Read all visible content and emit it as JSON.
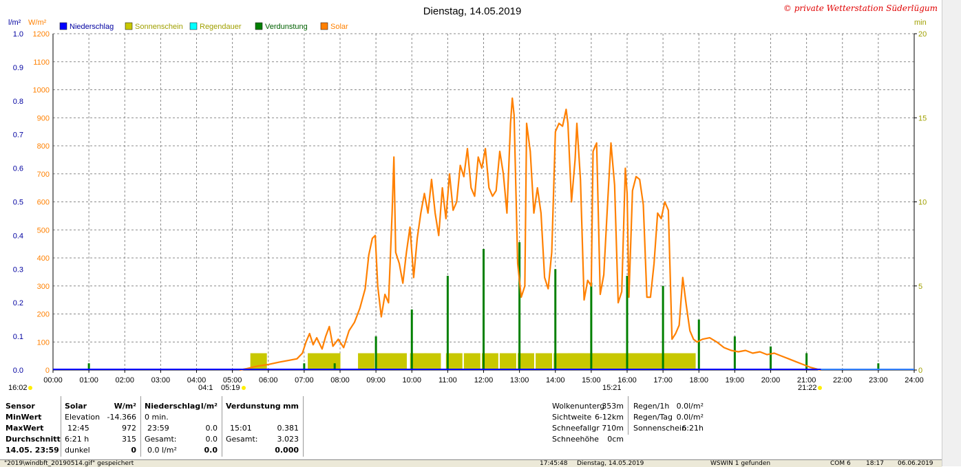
{
  "chart_data": {
    "type": "line",
    "title": "Dienstag, 14.05.2019",
    "copyright": "© private Wetterstation Süderlügum",
    "legend": [
      {
        "name": "Niederschlag",
        "color": "#0000ff"
      },
      {
        "name": "Sonnenschein",
        "color": "#c8c800"
      },
      {
        "name": "Regendauer",
        "color": "#00ffff"
      },
      {
        "name": "Verdunstung",
        "color": "#008000"
      },
      {
        "name": "Solar",
        "color": "#ff8000"
      }
    ],
    "left_axis1_unit": "l/m²",
    "left_axis2_unit": "W/m²",
    "right_axis_unit": "min",
    "left_axis1_ticks": [
      "0.0",
      "0.1",
      "0.2",
      "0.3",
      "0.4",
      "0.5",
      "0.6",
      "0.7",
      "0.8",
      "0.9",
      "1.0"
    ],
    "left_axis2_ticks": [
      "0",
      "100",
      "200",
      "300",
      "400",
      "500",
      "600",
      "700",
      "800",
      "900",
      "1000",
      "1100",
      "1200"
    ],
    "right_axis_ticks": [
      "0",
      "5",
      "10",
      "15",
      "20"
    ],
    "x_ticks": [
      "00:00",
      "01:00",
      "02:00",
      "03:00",
      "04:00",
      "05:00",
      "06:00",
      "07:00",
      "08:00",
      "09:00",
      "10:00",
      "11:00",
      "12:00",
      "13:00",
      "14:00",
      "15:00",
      "16:00",
      "17:00",
      "18:00",
      "19:00",
      "20:00",
      "21:00",
      "22:00",
      "23:00",
      "24:00"
    ],
    "solar_w_m2": [
      [
        5.2,
        0
      ],
      [
        5.4,
        5
      ],
      [
        5.7,
        14
      ],
      [
        6.0,
        20
      ],
      [
        6.3,
        28
      ],
      [
        6.6,
        35
      ],
      [
        6.8,
        40
      ],
      [
        6.95,
        60
      ],
      [
        7.05,
        100
      ],
      [
        7.15,
        130
      ],
      [
        7.25,
        90
      ],
      [
        7.35,
        115
      ],
      [
        7.5,
        75
      ],
      [
        7.6,
        120
      ],
      [
        7.7,
        155
      ],
      [
        7.8,
        85
      ],
      [
        7.95,
        110
      ],
      [
        8.1,
        80
      ],
      [
        8.25,
        140
      ],
      [
        8.4,
        170
      ],
      [
        8.55,
        220
      ],
      [
        8.7,
        290
      ],
      [
        8.8,
        410
      ],
      [
        8.9,
        470
      ],
      [
        8.98,
        480
      ],
      [
        9.05,
        300
      ],
      [
        9.15,
        190
      ],
      [
        9.25,
        270
      ],
      [
        9.35,
        240
      ],
      [
        9.45,
        560
      ],
      [
        9.5,
        760
      ],
      [
        9.55,
        420
      ],
      [
        9.65,
        380
      ],
      [
        9.75,
        310
      ],
      [
        9.85,
        420
      ],
      [
        9.95,
        510
      ],
      [
        10.05,
        330
      ],
      [
        10.15,
        470
      ],
      [
        10.25,
        560
      ],
      [
        10.35,
        630
      ],
      [
        10.45,
        560
      ],
      [
        10.55,
        680
      ],
      [
        10.65,
        560
      ],
      [
        10.75,
        480
      ],
      [
        10.85,
        650
      ],
      [
        10.95,
        540
      ],
      [
        11.05,
        700
      ],
      [
        11.15,
        570
      ],
      [
        11.25,
        600
      ],
      [
        11.35,
        730
      ],
      [
        11.45,
        690
      ],
      [
        11.55,
        790
      ],
      [
        11.65,
        650
      ],
      [
        11.75,
        620
      ],
      [
        11.85,
        760
      ],
      [
        11.95,
        720
      ],
      [
        12.05,
        790
      ],
      [
        12.15,
        650
      ],
      [
        12.25,
        620
      ],
      [
        12.35,
        640
      ],
      [
        12.45,
        780
      ],
      [
        12.55,
        700
      ],
      [
        12.65,
        560
      ],
      [
        12.75,
        880
      ],
      [
        12.8,
        970
      ],
      [
        12.85,
        910
      ],
      [
        12.95,
        380
      ],
      [
        13.05,
        260
      ],
      [
        13.15,
        300
      ],
      [
        13.2,
        880
      ],
      [
        13.3,
        780
      ],
      [
        13.4,
        560
      ],
      [
        13.5,
        650
      ],
      [
        13.6,
        560
      ],
      [
        13.7,
        330
      ],
      [
        13.8,
        290
      ],
      [
        13.9,
        420
      ],
      [
        14.0,
        850
      ],
      [
        14.1,
        880
      ],
      [
        14.2,
        870
      ],
      [
        14.3,
        930
      ],
      [
        14.35,
        880
      ],
      [
        14.45,
        600
      ],
      [
        14.55,
        750
      ],
      [
        14.6,
        880
      ],
      [
        14.7,
        680
      ],
      [
        14.8,
        250
      ],
      [
        14.9,
        320
      ],
      [
        15.0,
        300
      ],
      [
        15.05,
        780
      ],
      [
        15.15,
        810
      ],
      [
        15.25,
        270
      ],
      [
        15.35,
        340
      ],
      [
        15.45,
        580
      ],
      [
        15.55,
        810
      ],
      [
        15.65,
        660
      ],
      [
        15.75,
        240
      ],
      [
        15.85,
        280
      ],
      [
        15.95,
        720
      ],
      [
        16.0,
        630
      ],
      [
        16.05,
        260
      ],
      [
        16.15,
        640
      ],
      [
        16.25,
        690
      ],
      [
        16.35,
        680
      ],
      [
        16.45,
        590
      ],
      [
        16.55,
        260
      ],
      [
        16.65,
        260
      ],
      [
        16.75,
        380
      ],
      [
        16.85,
        560
      ],
      [
        16.95,
        540
      ],
      [
        17.05,
        600
      ],
      [
        17.15,
        570
      ],
      [
        17.25,
        110
      ],
      [
        17.35,
        130
      ],
      [
        17.45,
        160
      ],
      [
        17.55,
        330
      ],
      [
        17.65,
        230
      ],
      [
        17.75,
        140
      ],
      [
        17.85,
        110
      ],
      [
        17.95,
        100
      ],
      [
        18.1,
        110
      ],
      [
        18.3,
        115
      ],
      [
        18.5,
        100
      ],
      [
        18.7,
        80
      ],
      [
        18.9,
        70
      ],
      [
        19.1,
        65
      ],
      [
        19.3,
        70
      ],
      [
        19.5,
        60
      ],
      [
        19.7,
        65
      ],
      [
        19.9,
        55
      ],
      [
        20.1,
        60
      ],
      [
        20.3,
        50
      ],
      [
        20.5,
        40
      ],
      [
        20.7,
        30
      ],
      [
        20.9,
        20
      ],
      [
        21.1,
        10
      ],
      [
        21.3,
        3
      ],
      [
        21.4,
        0
      ]
    ],
    "sunshine_min": [
      [
        5.55,
        1
      ],
      [
        7.15,
        1
      ],
      [
        7.6,
        1
      ],
      [
        8.55,
        1
      ],
      [
        9.05,
        1
      ],
      [
        9.45,
        1
      ],
      [
        10.0,
        1
      ],
      [
        10.4,
        1
      ],
      [
        11.0,
        1
      ],
      [
        11.5,
        1
      ],
      [
        12.0,
        1
      ],
      [
        12.5,
        1
      ],
      [
        13.0,
        1
      ],
      [
        13.5,
        1
      ],
      [
        14.0,
        1
      ],
      [
        14.4,
        1
      ],
      [
        14.5,
        1
      ],
      [
        14.95,
        1
      ],
      [
        15.05,
        1
      ],
      [
        15.4,
        1
      ],
      [
        15.85,
        1
      ],
      [
        16.05,
        1
      ],
      [
        16.3,
        1
      ],
      [
        16.5,
        1
      ],
      [
        16.95,
        1
      ],
      [
        17.05,
        1
      ],
      [
        17.5,
        1
      ]
    ],
    "evaporation_bars": [
      [
        1.0,
        0.02
      ],
      [
        7.0,
        0.02
      ],
      [
        7.85,
        0.02
      ],
      [
        9.0,
        0.1
      ],
      [
        10.0,
        0.18
      ],
      [
        11.0,
        0.28
      ],
      [
        12.0,
        0.36
      ],
      [
        13.0,
        0.38
      ],
      [
        14.0,
        0.3
      ],
      [
        15.0,
        0.26
      ],
      [
        16.0,
        0.28
      ],
      [
        17.0,
        0.25
      ],
      [
        18.0,
        0.15
      ],
      [
        19.0,
        0.1
      ],
      [
        20.0,
        0.07
      ],
      [
        21.0,
        0.05
      ],
      [
        23.0,
        0.02
      ]
    ],
    "sunrise_left": "16:02",
    "sunrise_mark": "04:1",
    "sunrise_time": "05:19",
    "culmination": "15:21",
    "sunset_time": "21:22"
  },
  "stats": {
    "col1": [
      "Sensor",
      "MinWert",
      "MaxWert",
      "Durchschnitt",
      "14.05. 23:59"
    ],
    "col2_header": "Solar",
    "col2_unit": "W/m²",
    "col2_rows": [
      [
        "Elevation",
        "-14.366"
      ],
      [
        "12:45",
        "972"
      ],
      [
        "6:21 h",
        "315"
      ],
      [
        "dunkel",
        "0"
      ]
    ],
    "col3_header": "Niederschlag",
    "col3_unit": "l/m²",
    "col3_rows": [
      [
        "0 min.",
        ""
      ],
      [
        "23:59",
        "0.0"
      ],
      [
        "Gesamt:",
        "0.0"
      ],
      [
        "0.0 l/m²",
        "0.0"
      ]
    ],
    "col4_header": "Verdunstung",
    "col4_unit": "mm",
    "col4_rows": [
      [
        "",
        ""
      ],
      [
        "15:01",
        "0.381"
      ],
      [
        "Gesamt:",
        "3.023"
      ],
      [
        "",
        "0.000"
      ]
    ],
    "weather_left": [
      [
        "Wolkenunterg",
        "353m"
      ],
      [
        "Sichtweite",
        "6-12km"
      ],
      [
        "Schneefallgr",
        "710m"
      ],
      [
        "Schneehöhe",
        "0cm"
      ]
    ],
    "weather_right": [
      [
        "Regen/1h",
        "0.0l/m²"
      ],
      [
        "Regen/Tag",
        "0.0l/m²"
      ],
      [
        "Sonnenschein",
        "6:21h"
      ]
    ]
  },
  "statusbar": {
    "file": "\"2019\\windbft_20190514.gif\" gespeichert",
    "time": "17:45:48",
    "date": "Dienstag, 14.05.2019",
    "device": "WSWIN 1 gefunden",
    "port": "COM 6",
    "clock": "18:17",
    "today": "06.06.2019"
  }
}
